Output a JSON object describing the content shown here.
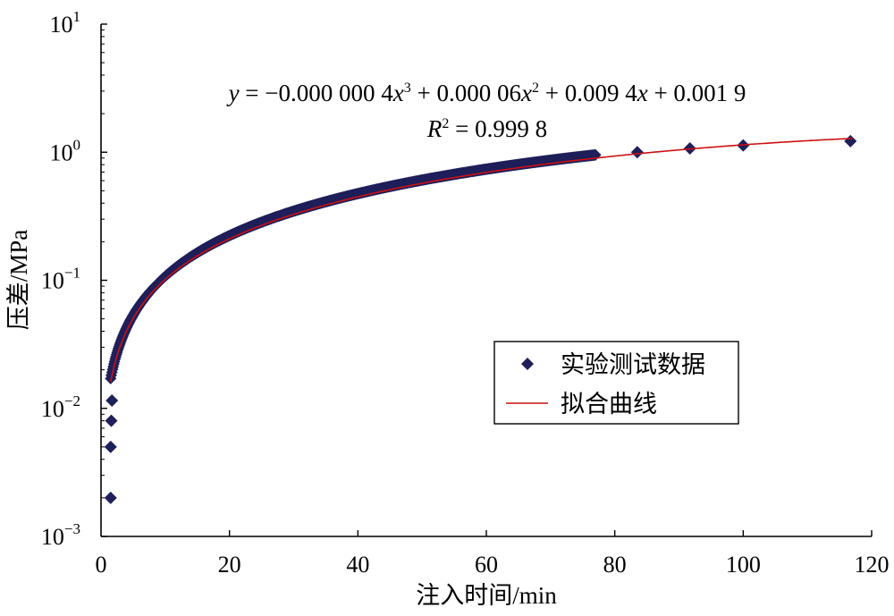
{
  "chart_data": {
    "type": "scatter",
    "xlabel": "注入时间/min",
    "ylabel": "压差/MPa",
    "xlim": [
      0,
      120
    ],
    "ylim": [
      0.001,
      10
    ],
    "yscale": "log",
    "grid": false,
    "x_ticks": [
      "0",
      "20",
      "40",
      "60",
      "80",
      "100",
      "120"
    ],
    "y_ticks": [
      {
        "base": "10",
        "exp": "−3"
      },
      {
        "base": "10",
        "exp": "−2"
      },
      {
        "base": "10",
        "exp": "−1"
      },
      {
        "base": "10",
        "exp": "0"
      },
      {
        "base": "10",
        "exp": "1"
      }
    ],
    "equation": {
      "y": "y",
      "eq_part1": " = −0.000 000 4",
      "x": "x",
      "exp3": "3",
      "eq_part2": " + 0.000 06",
      "exp2": "2",
      "eq_part3": " + 0.009 4",
      "eq_part4": " + 0.001 9",
      "r": "R",
      "r_exp": "2",
      "r_val": " = 0.999 8"
    },
    "legend": {
      "position": "center-right",
      "entries": [
        "实验测试数据",
        "拟合曲线"
      ]
    },
    "series": [
      {
        "name": "实验测试数据",
        "marker": "diamond",
        "color": "#1f1f5a",
        "dense_range": [
          1.5,
          77
        ],
        "dense_step": 0.1,
        "points": [
          [
            1.5,
            0.002
          ],
          [
            1.5,
            0.005
          ],
          [
            1.6,
            0.008
          ],
          [
            1.7,
            0.0115
          ],
          [
            83.5,
            1.0
          ],
          [
            91.7,
            1.07
          ],
          [
            100.0,
            1.13
          ],
          [
            116.7,
            1.22
          ]
        ]
      },
      {
        "name": "拟合曲线",
        "color": "#cc1111",
        "x_range": [
          1.5,
          117
        ],
        "coefficients": [
          -4e-07,
          6e-05,
          0.0094,
          0.0019
        ]
      }
    ]
  }
}
